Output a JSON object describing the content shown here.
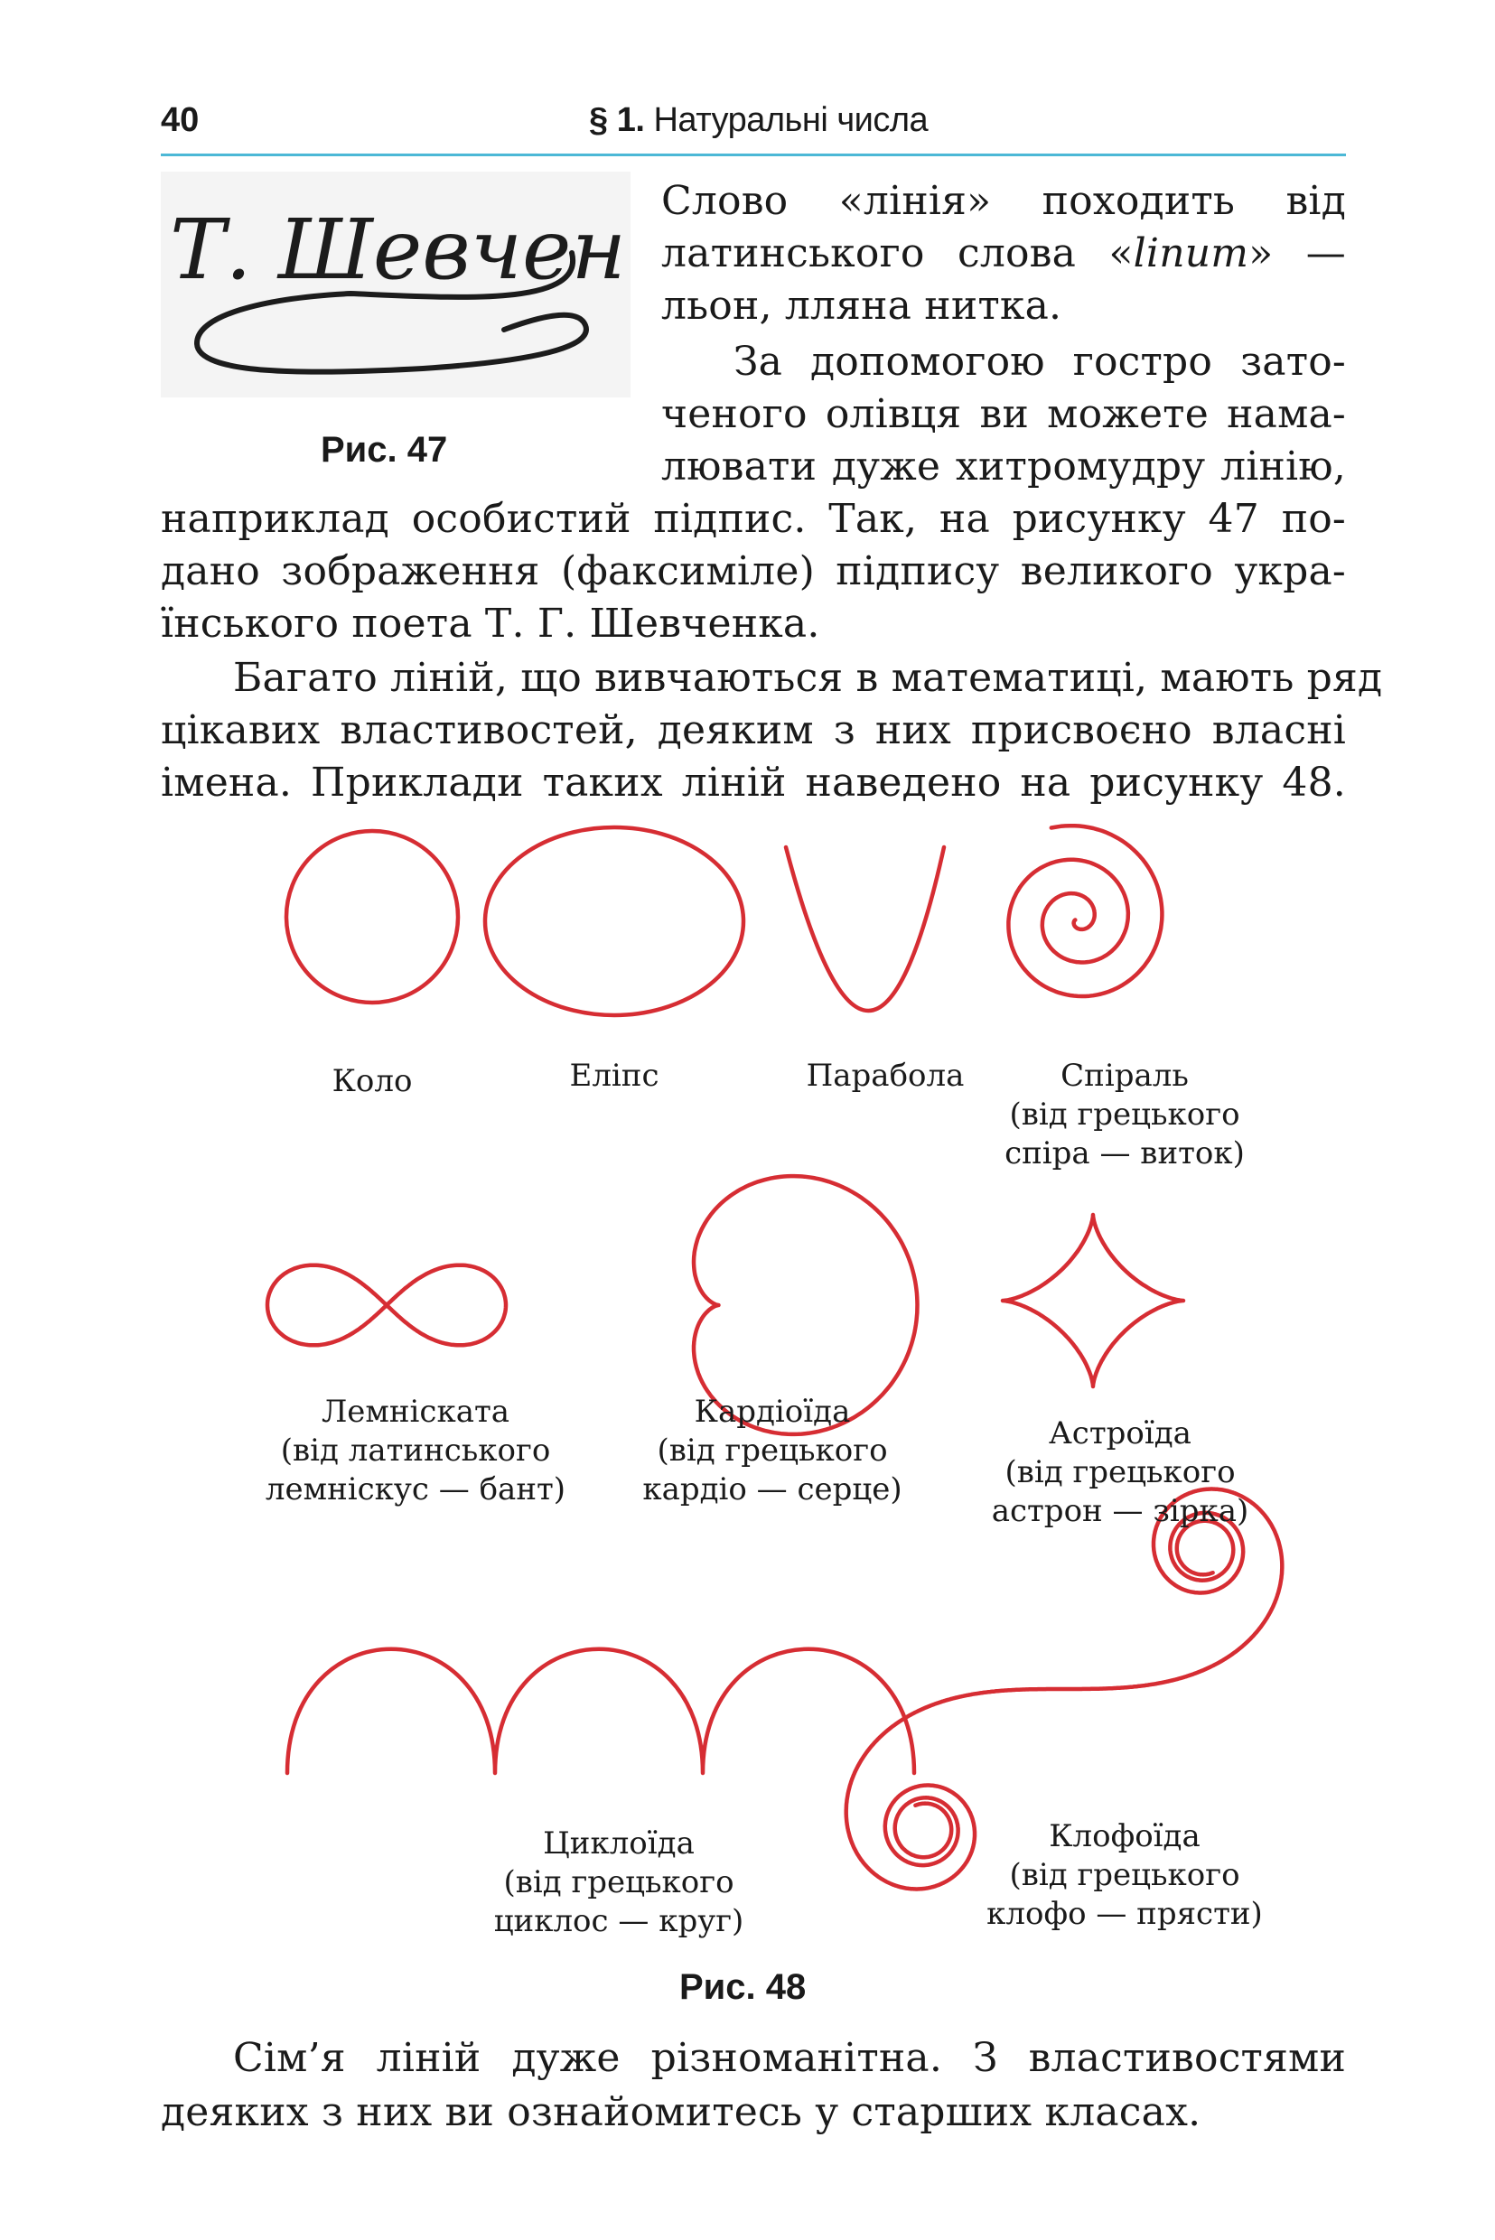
{
  "header": {
    "page_number": "40",
    "section": "§ 1.",
    "title": "Натуральні числа"
  },
  "intro_lines": [
    "Слово «лінія» походить від",
    "латинського слова «",
    "» —",
    "льон, лляна нитка.",
    "За допомогою гостро зато-",
    "ченого олівця ви можете нама-",
    "лювати дуже хитромудру лінію,",
    "наприклад особистий підпис. Так, на рисунку 47 по-",
    "дано зображення (факсиміле) підпису великого укра-",
    "їнського поета Т. Г. Шевченка."
  ],
  "latin_word": "linum",
  "signature_text": "Т. Шевченко",
  "fig47_caption": "Рис. 47",
  "para2_lines": [
    "Багато ліній, що вивчаються в математиці, мають ряд",
    "цікавих властивостей, деяким з них присвоєно власні",
    "імена. Приклади таких ліній наведено на рисунку 48."
  ],
  "curves": {
    "circle": {
      "label": [
        "Коло"
      ]
    },
    "ellipse": {
      "label": [
        "Еліпс"
      ]
    },
    "parabola": {
      "label": [
        "Парабола"
      ]
    },
    "spiral": {
      "label": [
        "Спіраль",
        "(від грецького",
        "спіра — виток)"
      ]
    },
    "lemniscate": {
      "label": [
        "Лемніската",
        "(від латинського",
        "лемніскус — бант)"
      ]
    },
    "cardioid": {
      "label": [
        "Кардіоїда",
        "(від грецького",
        "кардіо — серце)"
      ]
    },
    "astroid": {
      "label": [
        "Астроїда",
        "(від грецького",
        "астрон — зірка)"
      ]
    },
    "cycloid": {
      "label": [
        "Циклоїда",
        "(від грецького",
        "циклос — круг)"
      ]
    },
    "clothoid": {
      "label": [
        "Клофоїда",
        "(від грецького",
        "клофо — прясти)"
      ]
    }
  },
  "curve_color": "#d62d33",
  "fig48_caption": "Рис. 48",
  "closing_lines": [
    "Сім’я ліній дуже різноманітна. З властивостями",
    "деяких з них ви ознайомитесь у старших класах."
  ]
}
